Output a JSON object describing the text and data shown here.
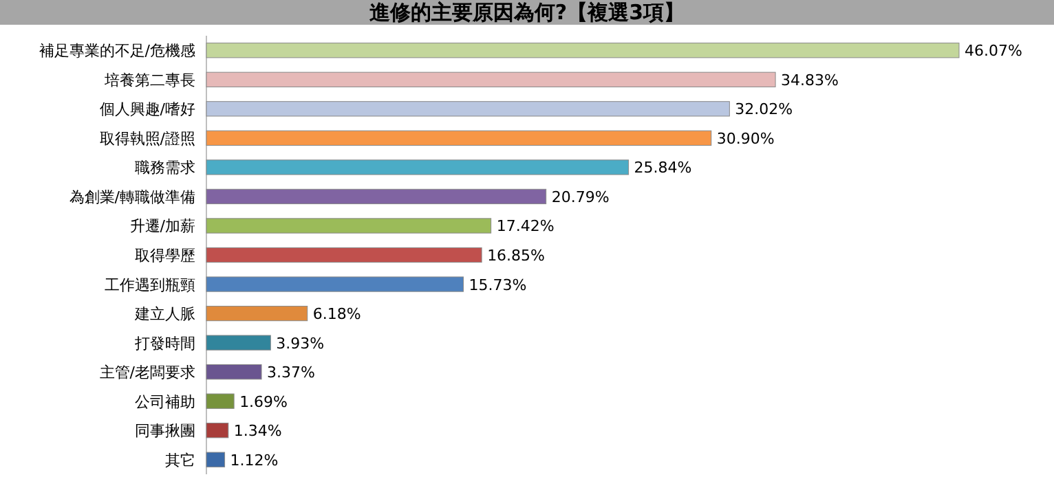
{
  "chart_data": {
    "type": "bar",
    "orientation": "horizontal",
    "title": "進修的主要原因為何?【複選3項】",
    "categories": [
      "補足專業的不足/危機感",
      "培養第二專長",
      "個人興趣/嗜好",
      "取得執照/證照",
      "職務需求",
      "為創業/轉職做準備",
      "升遷/加薪",
      "取得學歷",
      "工作遇到瓶頸",
      "建立人脈",
      "打發時間",
      "主管/老闆要求",
      "公司補助",
      "同事揪團",
      "其它"
    ],
    "values": [
      46.07,
      34.83,
      32.02,
      30.9,
      25.84,
      20.79,
      17.42,
      16.85,
      15.73,
      6.18,
      3.93,
      3.37,
      1.69,
      1.34,
      1.12
    ],
    "value_labels": [
      "46.07%",
      "34.83%",
      "32.02%",
      "30.90%",
      "25.84%",
      "20.79%",
      "17.42%",
      "16.85%",
      "15.73%",
      "6.18%",
      "3.93%",
      "3.37%",
      "1.69%",
      "1.34%",
      "1.12%"
    ],
    "colors": [
      "#c3d69b",
      "#e6b9b8",
      "#b9c6e0",
      "#f79646",
      "#4bacc6",
      "#8064a2",
      "#9bbb59",
      "#c0504d",
      "#4f81bd",
      "#e08a3c",
      "#31859c",
      "#6a5590",
      "#77933c",
      "#a83d3a",
      "#3b6aa8"
    ]
  }
}
